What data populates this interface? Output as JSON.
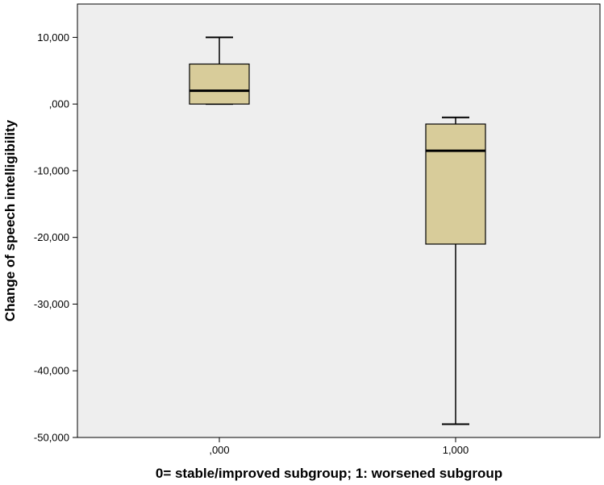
{
  "chart_data": {
    "type": "boxplot",
    "title": "",
    "xlabel": "0= stable/improved subgroup; 1: worsened subgroup",
    "ylabel": "Change of speech intelligibility",
    "ylim": [
      -50,
      15
    ],
    "y_ticks": [
      {
        "value": 10,
        "label": "10,000"
      },
      {
        "value": 0,
        "label": ",000"
      },
      {
        "value": -10,
        "label": "-10,000"
      },
      {
        "value": -20,
        "label": "-20,000"
      },
      {
        "value": -30,
        "label": "-30,000"
      },
      {
        "value": -40,
        "label": "-40,000"
      },
      {
        "value": -50,
        "label": "-50,000"
      }
    ],
    "categories": [
      ",000",
      "1,000"
    ],
    "boxes": [
      {
        "category": ",000",
        "whisker_low": 0,
        "q1": 0,
        "median": 2,
        "q3": 6,
        "whisker_high": 10
      },
      {
        "category": "1,000",
        "whisker_low": -48,
        "q1": -21,
        "median": -7,
        "q3": -3,
        "whisker_high": -2
      }
    ],
    "grid": false,
    "legend": "none",
    "colors": {
      "plot_background": "#eeeeee",
      "box_fill": "#d8cc9a",
      "stroke": "#000000"
    }
  }
}
